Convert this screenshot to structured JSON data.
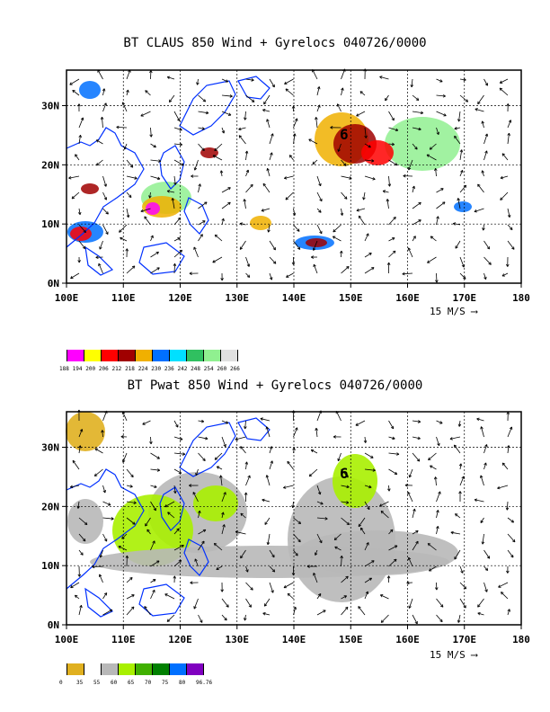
{
  "charts": [
    {
      "title": "BT CLAUS 850 Wind + Gyrelocs 040726/0000",
      "type": "heatmap",
      "x_ticks": [
        "100E",
        "110E",
        "120E",
        "130E",
        "140E",
        "150E",
        "160E",
        "170E",
        "180"
      ],
      "y_ticks": [
        "0N",
        "10N",
        "20N",
        "30N"
      ],
      "scale_label": "15 M/S",
      "colorbar": {
        "labels": [
          "188",
          "194",
          "200",
          "206",
          "212",
          "218",
          "224",
          "230",
          "236",
          "242",
          "248",
          "254",
          "260",
          "266"
        ],
        "colors": [
          "#ff00ff",
          "#ffff00",
          "#ff0000",
          "#a00000",
          "#f0b000",
          "#0070ff",
          "#00e0ff",
          "#30c060",
          "#90f090",
          "#e0e0e0"
        ]
      }
    },
    {
      "title": "BT Pwat 850 Wind + Gyrelocs 040726/0000",
      "type": "heatmap",
      "x_ticks": [
        "100E",
        "110E",
        "120E",
        "130E",
        "140E",
        "150E",
        "160E",
        "170E",
        "180"
      ],
      "y_ticks": [
        "0N",
        "10N",
        "20N",
        "30N"
      ],
      "scale_label": "15 M/S",
      "colorbar": {
        "labels": [
          "0",
          "35",
          "55",
          "60",
          "65",
          "70",
          "75",
          "80",
          "96.76"
        ],
        "colors": [
          "#e0b020",
          "#ffffff",
          "#b8b8b8",
          "#a8f000",
          "#40b000",
          "#008000",
          "#0070ff",
          "#8000c0"
        ]
      }
    }
  ]
}
